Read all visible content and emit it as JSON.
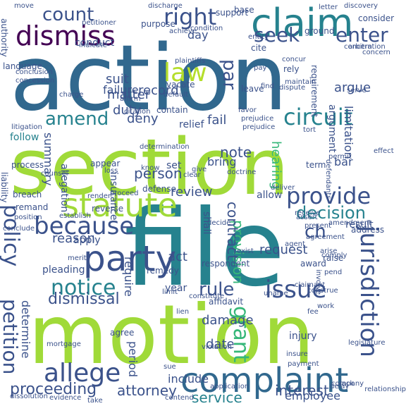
{
  "word_cloud": {
    "palette": {
      "dark-purple": "#440154",
      "indigo": "#3b528b",
      "blue": "#31688e",
      "teal": "#26828e",
      "green": "#35b779",
      "lime": "#a0da39",
      "light-green": "#b5de2b"
    },
    "words": [
      {
        "text": "action",
        "color": "#31688e"
      },
      {
        "text": "section",
        "color": "#a0da39"
      },
      {
        "text": "file",
        "color": "#26828e"
      },
      {
        "text": "motion",
        "color": "#a0da39"
      },
      {
        "text": "claim",
        "color": "#26828e"
      },
      {
        "text": "dismiss",
        "color": "#440154"
      },
      {
        "text": "complaint",
        "color": "#31688e"
      },
      {
        "text": "party",
        "color": "#3b528b"
      },
      {
        "text": "right",
        "color": "#3b528b"
      },
      {
        "text": "count",
        "color": "#3b528b"
      },
      {
        "text": "law",
        "color": "#b5de2b"
      },
      {
        "text": "statute",
        "color": "#a0da39"
      },
      {
        "text": "because",
        "color": "#3b528b"
      },
      {
        "text": "allege",
        "color": "#3b528b"
      },
      {
        "text": "issue",
        "color": "#3b528b"
      },
      {
        "text": "jurisdiction",
        "color": "#3b528b"
      },
      {
        "text": "circuit",
        "color": "#26828e"
      },
      {
        "text": "provide",
        "color": "#3b528b"
      },
      {
        "text": "notice",
        "color": "#26828e"
      },
      {
        "text": "policy",
        "color": "#3b528b"
      },
      {
        "text": "petition",
        "color": "#3b528b"
      },
      {
        "text": "grant",
        "color": "#35b779"
      },
      {
        "text": "seek",
        "color": "#3b528b"
      },
      {
        "text": "enter",
        "color": "#3b528b"
      },
      {
        "text": "amend",
        "color": "#26828e"
      },
      {
        "text": "rule",
        "color": "#3b528b"
      },
      {
        "text": "decision",
        "color": "#26828e"
      },
      {
        "text": "proceeding",
        "color": "#3b528b"
      },
      {
        "text": "par",
        "color": "#3b528b"
      },
      {
        "text": "ch",
        "color": "#3b528b"
      },
      {
        "text": "dismissal",
        "color": "#3b528b"
      },
      {
        "text": "attorney",
        "color": "#3b528b"
      },
      {
        "text": "interest",
        "color": "#3b528b"
      },
      {
        "text": "service",
        "color": "#26828e"
      },
      {
        "text": "duty",
        "color": "#3b528b"
      },
      {
        "text": "argue",
        "color": "#3b528b"
      },
      {
        "text": "note",
        "color": "#3b528b"
      },
      {
        "text": "person",
        "color": "#3b528b"
      },
      {
        "text": "review",
        "color": "#3b528b"
      },
      {
        "text": "provision",
        "color": "#35b779"
      },
      {
        "text": "contract",
        "color": "#3b528b"
      },
      {
        "text": "request",
        "color": "#3b528b"
      },
      {
        "text": "reason",
        "color": "#3b528b"
      },
      {
        "text": "act",
        "color": "#3b528b"
      },
      {
        "text": "record",
        "color": "#3b528b"
      },
      {
        "text": "suit",
        "color": "#3b528b"
      },
      {
        "text": "matter",
        "color": "#3b528b"
      },
      {
        "text": "failure",
        "color": "#3b528b"
      },
      {
        "text": "summary",
        "color": "#3b528b"
      },
      {
        "text": "deny",
        "color": "#3b528b"
      },
      {
        "text": "fail",
        "color": "#3b528b"
      },
      {
        "text": "hearing",
        "color": "#35b779"
      },
      {
        "text": "damage",
        "color": "#3b528b"
      },
      {
        "text": "date",
        "color": "#3b528b"
      },
      {
        "text": "period",
        "color": "#3b528b"
      },
      {
        "text": "include",
        "color": "#3b528b"
      },
      {
        "text": "employee",
        "color": "#3b528b"
      },
      {
        "text": "determine",
        "color": "#3b528b"
      },
      {
        "text": "limitation",
        "color": "#3b528b"
      },
      {
        "text": "argument",
        "color": "#3b528b"
      },
      {
        "text": "bring",
        "color": "#3b528b"
      },
      {
        "text": "allow",
        "color": "#3b528b"
      },
      {
        "text": "require",
        "color": "#3b528b"
      },
      {
        "text": "apply",
        "color": "#3b528b"
      },
      {
        "text": "follow",
        "color": "#26828e"
      },
      {
        "text": "day",
        "color": "#3b528b"
      },
      {
        "text": "bar",
        "color": "#3b528b"
      },
      {
        "text": "result",
        "color": "#3b528b"
      },
      {
        "text": "injury",
        "color": "#3b528b"
      },
      {
        "text": "shall",
        "color": "#3b528b"
      },
      {
        "text": "pleading",
        "color": "#3b528b"
      },
      {
        "text": "set",
        "color": "#3b528b"
      },
      {
        "text": "conduct",
        "color": "#3b528b"
      },
      {
        "text": "relief",
        "color": "#3b528b"
      },
      {
        "text": "allegation",
        "color": "#3b528b"
      },
      {
        "text": "insurance",
        "color": "#3b528b"
      },
      {
        "text": "contain",
        "color": "#3b528b"
      },
      {
        "text": "year",
        "color": "#3b528b"
      },
      {
        "text": "reverse",
        "color": "#3b528b"
      },
      {
        "text": "breach",
        "color": "#3b528b"
      },
      {
        "text": "remand",
        "color": "#3b528b"
      },
      {
        "text": "defense",
        "color": "#3b528b"
      },
      {
        "text": "appear",
        "color": "#3b528b"
      },
      {
        "text": "respondent",
        "color": "#3b528b"
      },
      {
        "text": "remedy",
        "color": "#3b528b"
      },
      {
        "text": "award",
        "color": "#3b528b"
      },
      {
        "text": "raise",
        "color": "#3b528b"
      },
      {
        "text": "affidavit",
        "color": "#3b528b"
      },
      {
        "text": "agree",
        "color": "#3b528b"
      },
      {
        "text": "term",
        "color": "#3b528b"
      },
      {
        "text": "leave",
        "color": "#3b528b"
      },
      {
        "text": "vacate",
        "color": "#3b528b"
      },
      {
        "text": "base",
        "color": "#3b528b"
      },
      {
        "text": "consider",
        "color": "#3b528b"
      },
      {
        "text": "ground",
        "color": "#3b528b"
      },
      {
        "text": "support",
        "color": "#3b528b"
      },
      {
        "text": "cite",
        "color": "#3b528b"
      },
      {
        "text": "rely",
        "color": "#3b528b"
      },
      {
        "text": "language",
        "color": "#3b528b"
      },
      {
        "text": "liability",
        "color": "#3b528b"
      },
      {
        "text": "process",
        "color": "#3b528b"
      },
      {
        "text": "authority",
        "color": "#3b528b"
      },
      {
        "text": "purpose",
        "color": "#3b528b"
      },
      {
        "text": "requirement",
        "color": "#3b528b"
      },
      {
        "text": "address",
        "color": "#3b528b"
      },
      {
        "text": "present",
        "color": "#3b528b"
      },
      {
        "text": "assert",
        "color": "#3b528b"
      },
      {
        "text": "contend",
        "color": "#3b528b"
      },
      {
        "text": "evidence",
        "color": "#3b528b"
      },
      {
        "text": "pay",
        "color": "#3b528b"
      },
      {
        "text": "fee",
        "color": "#3b528b"
      },
      {
        "text": "know",
        "color": "#3b528b"
      },
      {
        "text": "give",
        "color": "#3b528b"
      },
      {
        "text": "affirm",
        "color": "#3b528b"
      },
      {
        "text": "deliver",
        "color": "#3b528b"
      },
      {
        "text": "establish",
        "color": "#3b528b"
      },
      {
        "text": "involve",
        "color": "#3b528b"
      },
      {
        "text": "insure",
        "color": "#3b528b"
      },
      {
        "text": "payment",
        "color": "#3b528b"
      },
      {
        "text": "application",
        "color": "#3b528b"
      },
      {
        "text": "constitute",
        "color": "#3b528b"
      },
      {
        "text": "work",
        "color": "#3b528b"
      },
      {
        "text": "conclude",
        "color": "#3b528b"
      },
      {
        "text": "agreement",
        "color": "#3b528b"
      },
      {
        "text": "violation",
        "color": "#3b528b"
      },
      {
        "text": "limit",
        "color": "#3b528b"
      },
      {
        "text": "decide",
        "color": "#3b528b"
      },
      {
        "text": "doctrine",
        "color": "#3b528b"
      },
      {
        "text": "position",
        "color": "#3b528b"
      },
      {
        "text": "receive",
        "color": "#3b528b"
      },
      {
        "text": "plaintiffs",
        "color": "#3b528b"
      },
      {
        "text": "defendants",
        "color": "#3b528b"
      },
      {
        "text": "relationship",
        "color": "#3b528b"
      },
      {
        "text": "condition",
        "color": "#3b528b"
      },
      {
        "text": "discovery",
        "color": "#3b528b"
      },
      {
        "text": "letter",
        "color": "#3b528b"
      },
      {
        "text": "move",
        "color": "#3b528b"
      },
      {
        "text": "discharge",
        "color": "#3b528b"
      },
      {
        "text": "achieve",
        "color": "#3b528b"
      },
      {
        "text": "indicate",
        "color": "#3b528b"
      },
      {
        "text": "concern",
        "color": "#3b528b"
      },
      {
        "text": "arbitration",
        "color": "#3b528b"
      },
      {
        "text": "dispute",
        "color": "#3b528b"
      },
      {
        "text": "maintain",
        "color": "#3b528b"
      },
      {
        "text": "find",
        "color": "#3b528b"
      },
      {
        "text": "serve",
        "color": "#3b528b"
      },
      {
        "text": "default",
        "color": "#3b528b"
      },
      {
        "text": "citation",
        "color": "#3b528b"
      },
      {
        "text": "charge",
        "color": "#3b528b"
      },
      {
        "text": "litigation",
        "color": "#3b528b"
      },
      {
        "text": "favor",
        "color": "#3b528b"
      },
      {
        "text": "prejudice",
        "color": "#3b528b"
      },
      {
        "text": "tort",
        "color": "#3b528b"
      },
      {
        "text": "permit",
        "color": "#3b528b"
      },
      {
        "text": "effect",
        "color": "#3b528b"
      },
      {
        "text": "determination",
        "color": "#3b528b"
      },
      {
        "text": "exist",
        "color": "#3b528b"
      },
      {
        "text": "loss",
        "color": "#3b528b"
      },
      {
        "text": "proceed",
        "color": "#3b528b"
      },
      {
        "text": "render",
        "color": "#3b528b"
      },
      {
        "text": "merit",
        "color": "#3b528b"
      },
      {
        "text": "comply",
        "color": "#3b528b"
      },
      {
        "text": "pend",
        "color": "#3b528b"
      },
      {
        "text": "claimant",
        "color": "#3b528b"
      },
      {
        "text": "company",
        "color": "#3b528b"
      },
      {
        "text": "take",
        "color": "#3b528b"
      },
      {
        "text": "counsel",
        "color": "#3b528b"
      },
      {
        "text": "construe",
        "color": "#3b528b"
      },
      {
        "text": "arise",
        "color": "#3b528b"
      },
      {
        "text": "legislature",
        "color": "#3b528b"
      },
      {
        "text": "lack",
        "color": "#3b528b"
      },
      {
        "text": "delay",
        "color": "#3b528b"
      },
      {
        "text": "amendment",
        "color": "#3b528b"
      },
      {
        "text": "entity",
        "color": "#3b528b"
      },
      {
        "text": "concur",
        "color": "#3b528b"
      },
      {
        "text": "concern",
        "color": "#3b528b"
      },
      {
        "text": "concession",
        "color": "#3b528b"
      },
      {
        "text": "petitioner",
        "color": "#3b528b"
      },
      {
        "text": "dissolution",
        "color": "#3b528b"
      },
      {
        "text": "lien",
        "color": "#3b528b"
      },
      {
        "text": "clear",
        "color": "#3b528b"
      },
      {
        "text": "mortgage",
        "color": "#3b528b"
      },
      {
        "text": "sue",
        "color": "#3b528b"
      },
      {
        "text": "uname",
        "color": "#3b528b"
      },
      {
        "text": "agent",
        "color": "#3b528b"
      },
      {
        "text": "conclusion",
        "color": "#3b528b"
      },
      {
        "text": "prejudice",
        "color": "#3b528b"
      }
    ]
  }
}
